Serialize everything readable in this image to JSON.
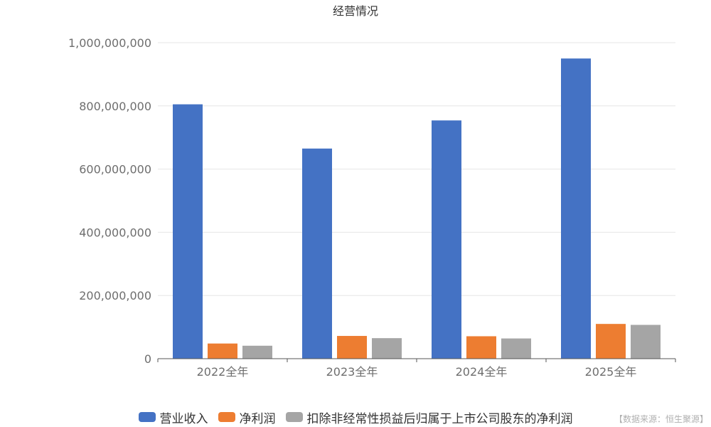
{
  "chart_data": {
    "type": "bar",
    "title": "经营情况",
    "categories": [
      "2022全年",
      "2023全年",
      "2024全年",
      "2025全年"
    ],
    "series": [
      {
        "name": "营业收入",
        "color": "#4472c4",
        "values": [
          805000000,
          665000000,
          754000000,
          950000000
        ]
      },
      {
        "name": "净利润",
        "color": "#ed7d31",
        "values": [
          48000000,
          72000000,
          71000000,
          110000000
        ]
      },
      {
        "name": "扣除非经常性损益后归属于上市公司股东的净利润",
        "color": "#a5a5a5",
        "values": [
          41000000,
          65000000,
          64000000,
          107000000
        ]
      }
    ],
    "ylim": [
      0,
      1000000000
    ],
    "yticks": [
      "0",
      "200,000,000",
      "400,000,000",
      "600,000,000",
      "800,000,000",
      "1,000,000,000"
    ],
    "grid": true,
    "legend": "bottom"
  },
  "source_note": "【数据来源：恒生聚源】"
}
